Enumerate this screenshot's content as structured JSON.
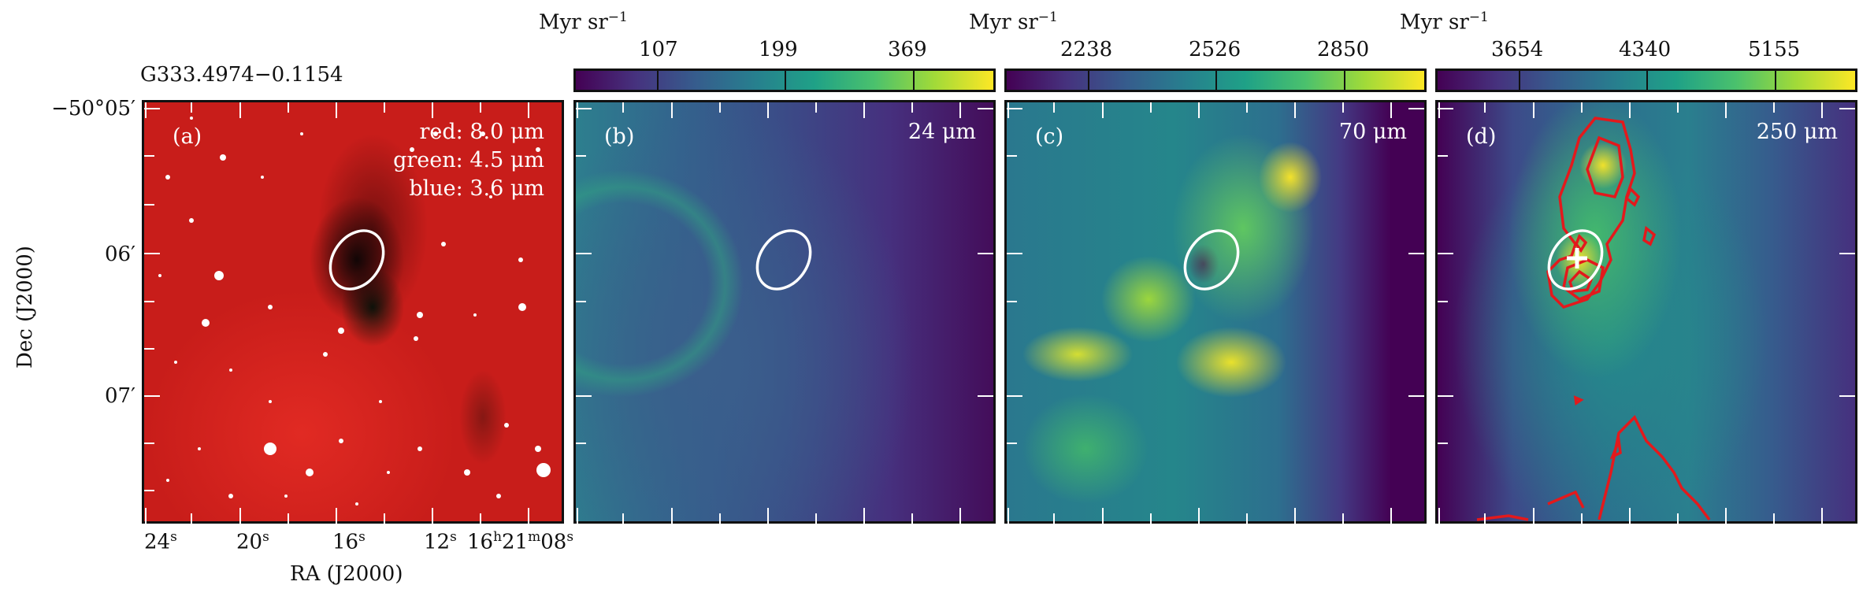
{
  "figure": {
    "source_name": "G333.4974−0.1154",
    "colors": {
      "ellipse": "#ffffff",
      "contour": "#e3191c",
      "marker": "#ffffff"
    }
  },
  "axes": {
    "ra_label": "RA (J2000)",
    "dec_label": "Dec (J2000)",
    "ra_ticks": [
      {
        "main": "24",
        "sup": "s"
      },
      {
        "main": "20",
        "sup": "s"
      },
      {
        "main": "16",
        "sup": "s"
      },
      {
        "main": "12",
        "sup": "s"
      },
      {
        "main": "16h21m08",
        "prefix": "16",
        "h": "h",
        "mid": "21",
        "m": "m",
        "end": "08",
        "sup": "s"
      }
    ],
    "dec_ticks": [
      "−50°05′",
      "06′",
      "07′"
    ]
  },
  "panels": [
    {
      "id": "a",
      "letter": "(a)",
      "legend": [
        "red: 8.0 μm",
        "green: 4.5 μm",
        "blue: 3.6 μm"
      ]
    },
    {
      "id": "b",
      "letter": "(b)",
      "band": "24 μm",
      "colorbar": {
        "unit": "Myr sr",
        "unit_exp": "−1",
        "ticks": [
          "107",
          "199",
          "369"
        ]
      }
    },
    {
      "id": "c",
      "letter": "(c)",
      "band": "70 μm",
      "colorbar": {
        "unit": "Myr sr",
        "unit_exp": "−1",
        "ticks": [
          "2238",
          "2526",
          "2850"
        ]
      }
    },
    {
      "id": "d",
      "letter": "(d)",
      "band": "250 μm",
      "colorbar": {
        "unit": "Myr sr",
        "unit_exp": "−1",
        "ticks": [
          "3654",
          "4340",
          "5155"
        ]
      }
    }
  ]
}
